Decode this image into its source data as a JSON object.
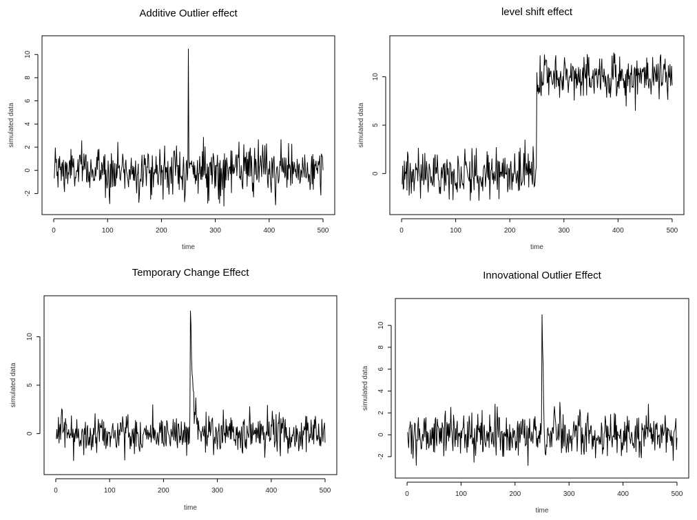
{
  "chart_data": [
    {
      "type": "line",
      "title": "Additive Outlier effect",
      "xlabel": "time",
      "ylabel": "simulated data",
      "xlim": [
        0,
        500
      ],
      "ylim": [
        -3.2,
        11.0
      ],
      "xticks": [
        0,
        100,
        200,
        300,
        400,
        500
      ],
      "yticks": [
        -2,
        0,
        2,
        4,
        6,
        8,
        10
      ],
      "effect": "additive_outlier",
      "outlier_at": 250,
      "outlier_peak": 10.5,
      "series": [
        {
          "x_start": 1,
          "x_end": 500,
          "noise_range": [
            -3.1,
            2.9
          ],
          "peak": 10.5
        }
      ]
    },
    {
      "type": "line",
      "title": "level shift effect",
      "xlabel": "time",
      "ylabel": "simulated data",
      "xlim": [
        0,
        500
      ],
      "ylim": [
        -3.5,
        13.5
      ],
      "xticks": [
        0,
        100,
        200,
        300,
        400,
        500
      ],
      "yticks": [
        0,
        5,
        10
      ],
      "effect": "level_shift",
      "shift_at": 250,
      "level_before": 0,
      "level_after": 10,
      "series": [
        {
          "x_start": 1,
          "x_end": 500,
          "range_before": [
            -2.8,
            3.5
          ],
          "range_after": [
            6.5,
            13.2
          ]
        }
      ]
    },
    {
      "type": "line",
      "title": "Temporary Change Effect",
      "xlabel": "time",
      "ylabel": "simulated data",
      "xlim": [
        0,
        500
      ],
      "ylim": [
        -3.5,
        13.5
      ],
      "xticks": [
        0,
        100,
        200,
        300,
        400,
        500
      ],
      "yticks": [
        0,
        5,
        10
      ],
      "effect": "temporary_change",
      "change_at": 250,
      "change_peak": 12.7,
      "series": [
        {
          "x_start": 1,
          "x_end": 500,
          "noise_range": [
            -3.0,
            3.0
          ],
          "peak": 12.7
        }
      ]
    },
    {
      "type": "line",
      "title": "Innovational Outlier Effect",
      "xlabel": "time",
      "ylabel": "simulated data",
      "xlim": [
        0,
        500
      ],
      "ylim": [
        -3.3,
        11.8
      ],
      "xticks": [
        0,
        100,
        200,
        300,
        400,
        500
      ],
      "yticks": [
        -2,
        0,
        2,
        4,
        6,
        8,
        10
      ],
      "effect": "innovational_outlier",
      "outlier_at": 250,
      "outlier_peak": 11.0,
      "series": [
        {
          "x_start": 1,
          "x_end": 500,
          "noise_range": [
            -3.1,
            4.4
          ],
          "peak": 11.0
        }
      ]
    }
  ]
}
